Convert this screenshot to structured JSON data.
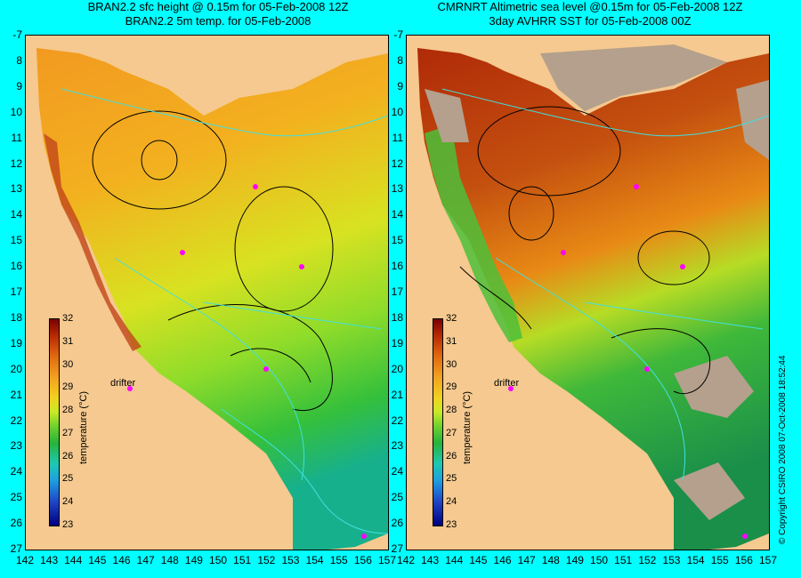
{
  "titles": {
    "left_line1": "BRAN2.2 sfc height @ 0.15m for 05-Feb-2008 12Z",
    "left_line2": "BRAN2.2 5m temp. for 05-Feb-2008",
    "right_line1": "CMRNRT Altimetric sea level  @0.15m  for 05-Feb-2008 12Z",
    "right_line2": "3day AVHRR SST for 05-Feb-2008 00Z"
  },
  "latitude_labels": [
    "-7",
    "8",
    "9",
    "10",
    "11",
    "12",
    "13",
    "14",
    "15",
    "16",
    "17",
    "18",
    "19",
    "20",
    "21",
    "22",
    "23",
    "24",
    "25",
    "26",
    "27"
  ],
  "longitude_labels": [
    "142",
    "143",
    "144",
    "145",
    "146",
    "147",
    "148",
    "149",
    "150",
    "151",
    "152",
    "153",
    "154",
    "155",
    "156",
    "157"
  ],
  "colorbar": {
    "ticks": [
      "32",
      "31",
      "30",
      "29",
      "28",
      "27",
      "26",
      "25",
      "24",
      "23"
    ],
    "label": "temperature (°C)"
  },
  "drifter_label": "drifter",
  "copyright": "© Copyright CSIRO 2008   07-Oct-2008 18:52:44",
  "colors": {
    "background": "#00ffff",
    "land": "#f5c98f",
    "drifter": "#ff00ff",
    "contour": "#000000",
    "bathymetry": "#40e0e0",
    "cloud_mask": "#b4a08c"
  }
}
